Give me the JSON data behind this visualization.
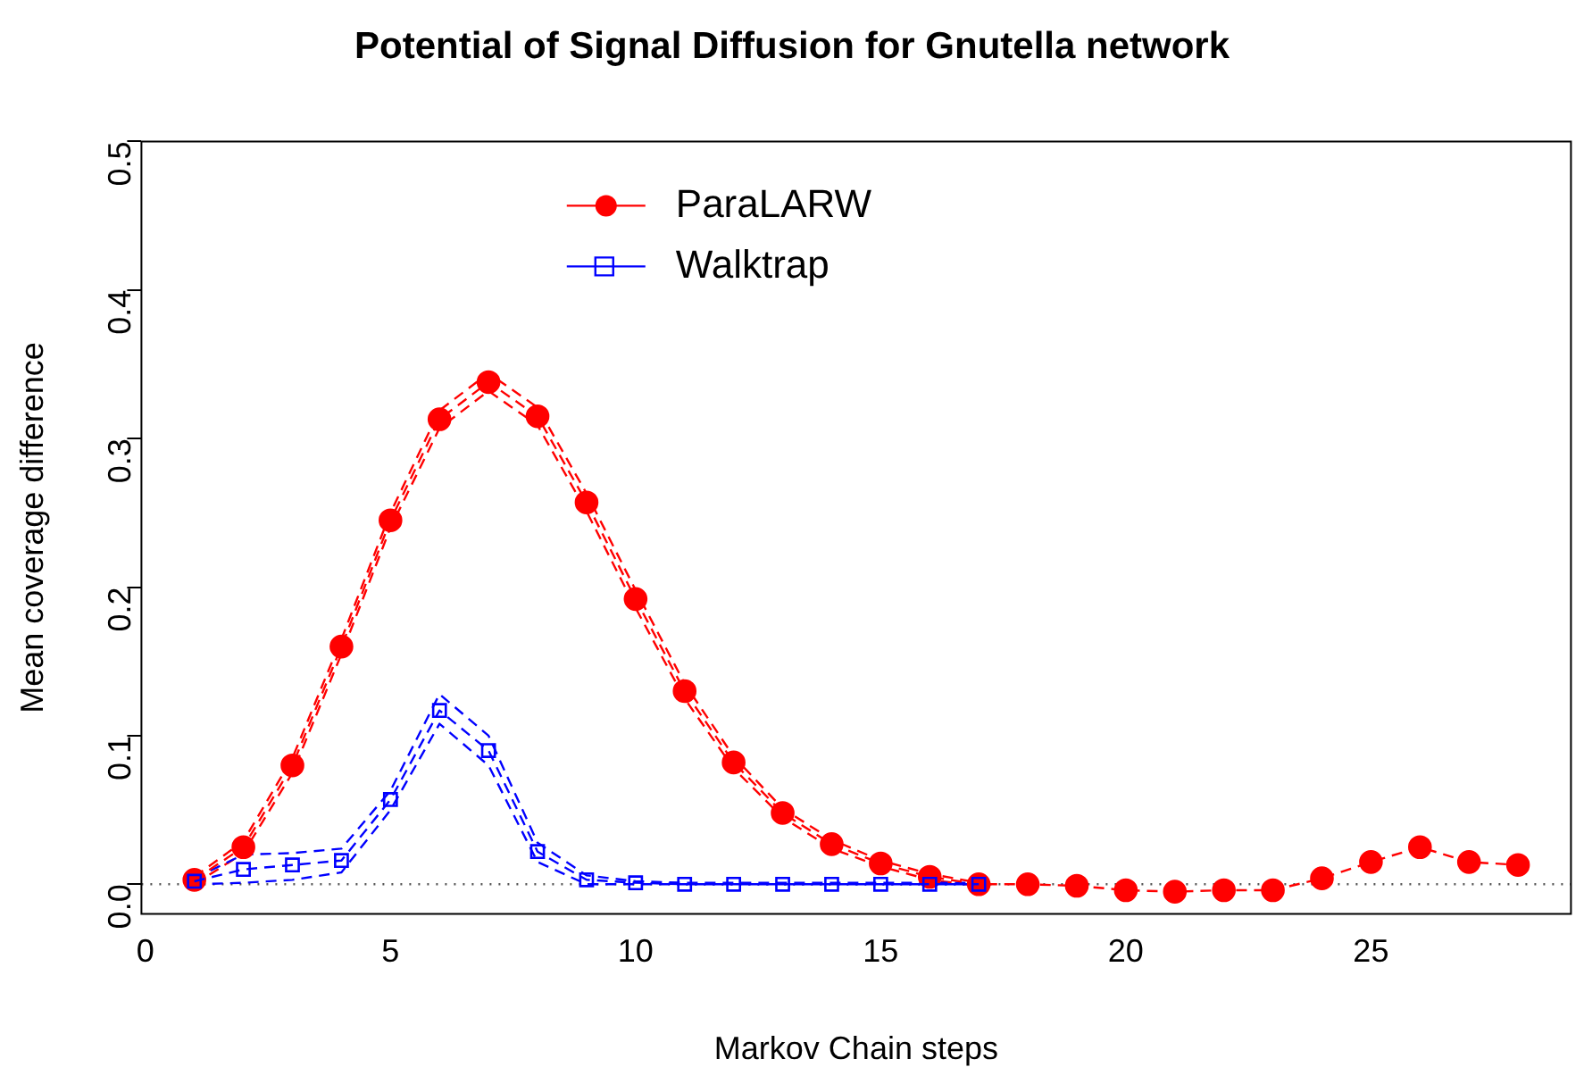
{
  "chart_data": {
    "type": "line",
    "title": "Potential of Signal Diffusion for Gnutella network",
    "xlabel": "Markov Chain steps",
    "ylabel": "Mean coverage difference",
    "x": [
      1,
      2,
      3,
      4,
      5,
      6,
      7,
      8,
      9,
      10,
      11,
      12,
      13,
      14,
      15,
      16,
      17,
      18,
      19,
      20,
      21,
      22,
      23,
      24,
      25,
      26,
      27,
      28
    ],
    "series": [
      {
        "name": "ParaLARW",
        "color": "#ff0000",
        "marker": "circle",
        "values": [
          0.003,
          0.025,
          0.08,
          0.16,
          0.245,
          0.313,
          0.338,
          0.315,
          0.257,
          0.192,
          0.13,
          0.082,
          0.048,
          0.027,
          0.014,
          0.005,
          0,
          0,
          -0.001,
          -0.004,
          -0.005,
          -0.004,
          -0.004,
          0.004,
          0.015,
          0.025,
          0.015,
          0.013
        ]
      },
      {
        "name": "Walktrap",
        "color": "#0000ff",
        "marker": "square",
        "x": [
          1,
          2,
          3,
          4,
          5,
          6,
          7,
          8,
          9,
          10,
          11,
          12,
          13,
          14,
          15,
          16,
          17
        ],
        "values": [
          0.002,
          0.01,
          0.013,
          0.016,
          0.057,
          0.117,
          0.09,
          0.022,
          0.003,
          0.001,
          0,
          0,
          0,
          0,
          0,
          0,
          0
        ]
      },
      {
        "color": "#ff0000",
        "marker": "none",
        "x": [
          1,
          2,
          3,
          4,
          5,
          6,
          7,
          8,
          9,
          10,
          11,
          12,
          13,
          14,
          15,
          16,
          17
        ],
        "values": [
          0,
          0.021,
          0.075,
          0.155,
          0.24,
          0.307,
          0.332,
          0.309,
          0.251,
          0.186,
          0.125,
          0.078,
          0.045,
          0.024,
          0.012,
          0.003,
          -0.001
        ]
      },
      {
        "color": "#ff0000",
        "marker": "none",
        "x": [
          1,
          2,
          3,
          4,
          5,
          6,
          7,
          8,
          9,
          10,
          11,
          12,
          13,
          14,
          15,
          16,
          17
        ],
        "values": [
          0.005,
          0.029,
          0.085,
          0.165,
          0.25,
          0.319,
          0.344,
          0.321,
          0.263,
          0.198,
          0.135,
          0.086,
          0.051,
          0.03,
          0.016,
          0.007,
          0.001
        ]
      },
      {
        "color": "#0000ff",
        "marker": "none",
        "x": [
          1,
          2,
          3,
          4,
          5,
          6,
          7,
          8,
          9,
          10,
          11,
          12,
          13,
          14,
          15,
          16,
          17
        ],
        "values": [
          0,
          0.001,
          0.003,
          0.008,
          0.05,
          0.108,
          0.08,
          0.015,
          0,
          0,
          0,
          0,
          0,
          0,
          0,
          0,
          0
        ]
      },
      {
        "color": "#0000ff",
        "marker": "none",
        "x": [
          1,
          2,
          3,
          4,
          5,
          6,
          7,
          8,
          9,
          10,
          11,
          12,
          13,
          14,
          15,
          16,
          17
        ],
        "values": [
          0.004,
          0.02,
          0.021,
          0.024,
          0.063,
          0.128,
          0.1,
          0.028,
          0.006,
          0.002,
          0.001,
          0.001,
          0.001,
          0.001,
          0.001,
          0.001,
          0.001
        ]
      }
    ],
    "xlim": [
      -0.08,
      29.08
    ],
    "xticks": [
      0,
      5,
      10,
      15,
      20,
      25
    ],
    "ylim": [
      -0.02,
      0.5
    ],
    "yticks": [
      {
        "value": 0,
        "label": "0.0"
      },
      {
        "value": 0.1,
        "label": "0.1"
      },
      {
        "value": 0.2,
        "label": "0.2"
      },
      {
        "value": 0.3,
        "label": "0.3"
      },
      {
        "value": 0.4,
        "label": "0.4"
      },
      {
        "value": 0.5,
        "label": "0.5"
      }
    ],
    "ref_lines": [
      {
        "axis": "y",
        "value": 0,
        "line_style": "dotted",
        "color": "#555555"
      }
    ],
    "grid": false,
    "legend": "top",
    "line_style": "dashed"
  }
}
